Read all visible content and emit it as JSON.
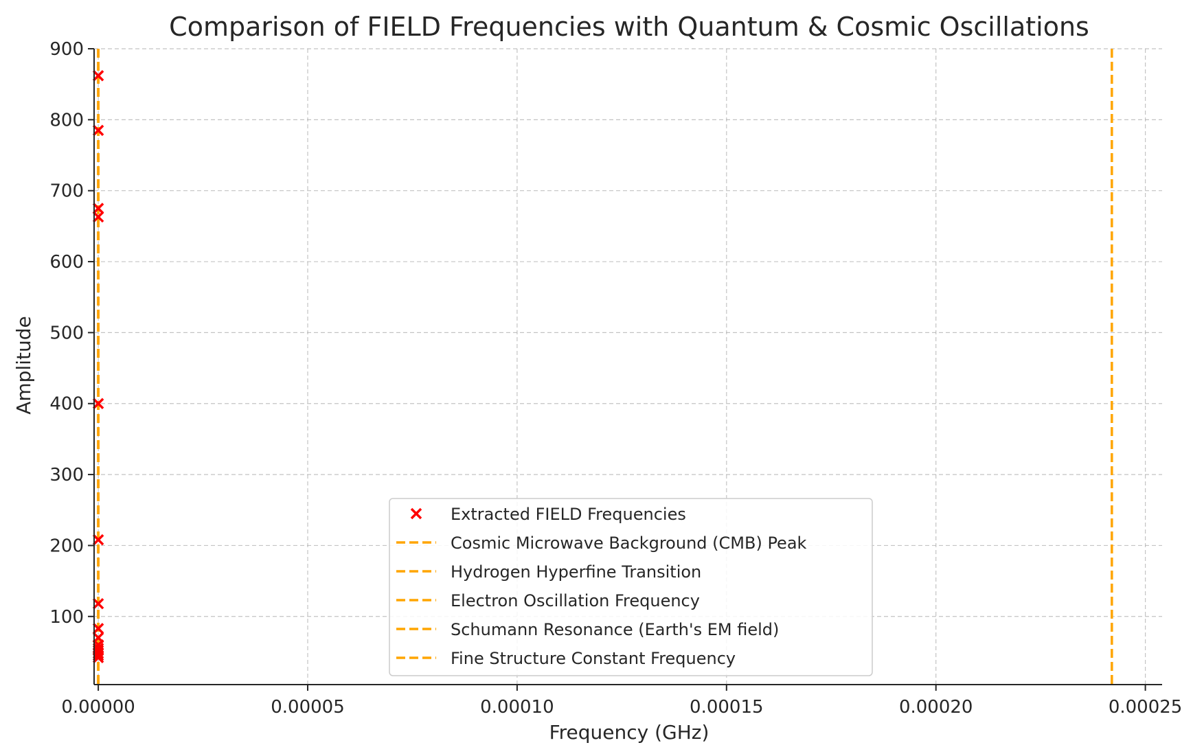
{
  "colors": {
    "marker": "#ff0000",
    "vline": "#ffa500",
    "grid": "#b0b0b0",
    "axis": "#262626",
    "legend_border": "#cccccc"
  },
  "chart_data": {
    "type": "scatter",
    "title": "Comparison of FIELD Frequencies with Quantum & Cosmic Oscillations",
    "xlabel": "Frequency (GHz)",
    "ylabel": "Amplitude",
    "xlim": [
      -1e-06,
      0.000254
    ],
    "ylim": [
      4,
      900
    ],
    "xticks": [
      0,
      5e-05,
      0.0001,
      0.00015,
      0.0002,
      0.00025
    ],
    "xtick_labels": [
      "0.00000",
      "0.00005",
      "0.00010",
      "0.00015",
      "0.00020",
      "0.00025"
    ],
    "yticks": [
      100,
      200,
      300,
      400,
      500,
      600,
      700,
      800,
      900
    ],
    "ytick_labels": [
      "100",
      "200",
      "300",
      "400",
      "500",
      "600",
      "700",
      "800",
      "900"
    ],
    "grid": true,
    "legend_position": "lower center",
    "series": [
      {
        "name": "Extracted FIELD Frequencies",
        "marker": "x",
        "x": [
          3e-10,
          2e-10,
          1e-10,
          1e-10,
          2e-10,
          1e-10,
          1e-10,
          1e-10,
          1e-10,
          1e-10,
          1e-10,
          1e-10,
          1e-10,
          1e-10,
          1e-10
        ],
        "y": [
          862,
          785,
          675,
          663,
          400,
          208,
          118,
          83,
          70,
          60,
          55,
          52,
          48,
          45,
          42
        ]
      }
    ],
    "vertical_lines": [
      {
        "name": "Cosmic Microwave Background (CMB) Peak",
        "x": 0.0
      },
      {
        "name": "Hydrogen Hyperfine Transition",
        "x": 0.0
      },
      {
        "name": "Electron Oscillation Frequency",
        "x": 0.000242
      },
      {
        "name": "Schumann Resonance (Earth's EM field)",
        "x": 0.0
      },
      {
        "name": "Fine Structure Constant Frequency",
        "x": 0.0
      }
    ]
  }
}
